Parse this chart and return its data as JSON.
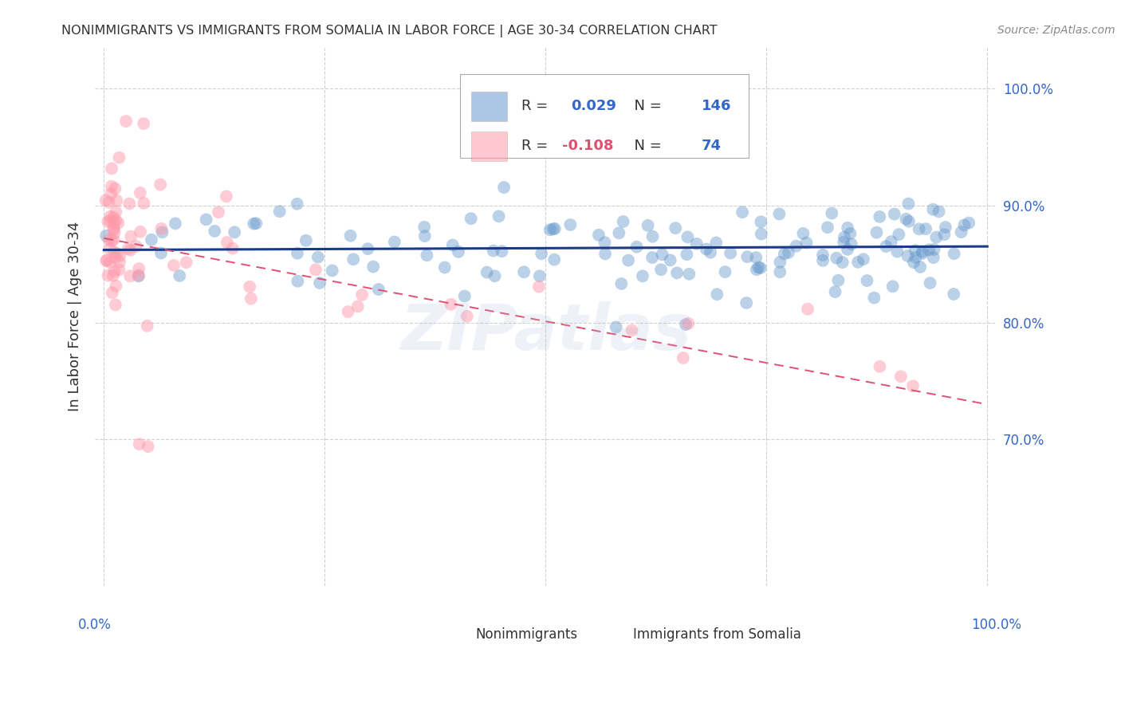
{
  "title": "NONIMMIGRANTS VS IMMIGRANTS FROM SOMALIA IN LABOR FORCE | AGE 30-34 CORRELATION CHART",
  "source": "Source: ZipAtlas.com",
  "ylabel": "In Labor Force | Age 30-34",
  "watermark": "ZIPatlas",
  "legend": {
    "blue_r": "0.029",
    "blue_n": "146",
    "pink_r": "-0.108",
    "pink_n": "74"
  },
  "ylim": [
    0.575,
    1.035
  ],
  "xlim": [
    -0.01,
    1.01
  ],
  "yticks": [
    0.7,
    0.8,
    0.9,
    1.0
  ],
  "ytick_labels": [
    "70.0%",
    "80.0%",
    "90.0%",
    "100.0%"
  ],
  "xticks": [
    0.0,
    0.25,
    0.5,
    0.75,
    1.0
  ],
  "blue_color": "#6699CC",
  "pink_color": "#FF99AA",
  "blue_trend_color": "#1a3a8a",
  "pink_trend_color": "#e05070",
  "grid_color": "#CCCCCC",
  "axis_label_color": "#3366CC",
  "title_color": "#333333",
  "background_color": "#FFFFFF",
  "blue_trend_y_start": 0.862,
  "blue_trend_y_end": 0.865,
  "pink_trend_y_start": 0.872,
  "pink_trend_y_end": 0.73
}
